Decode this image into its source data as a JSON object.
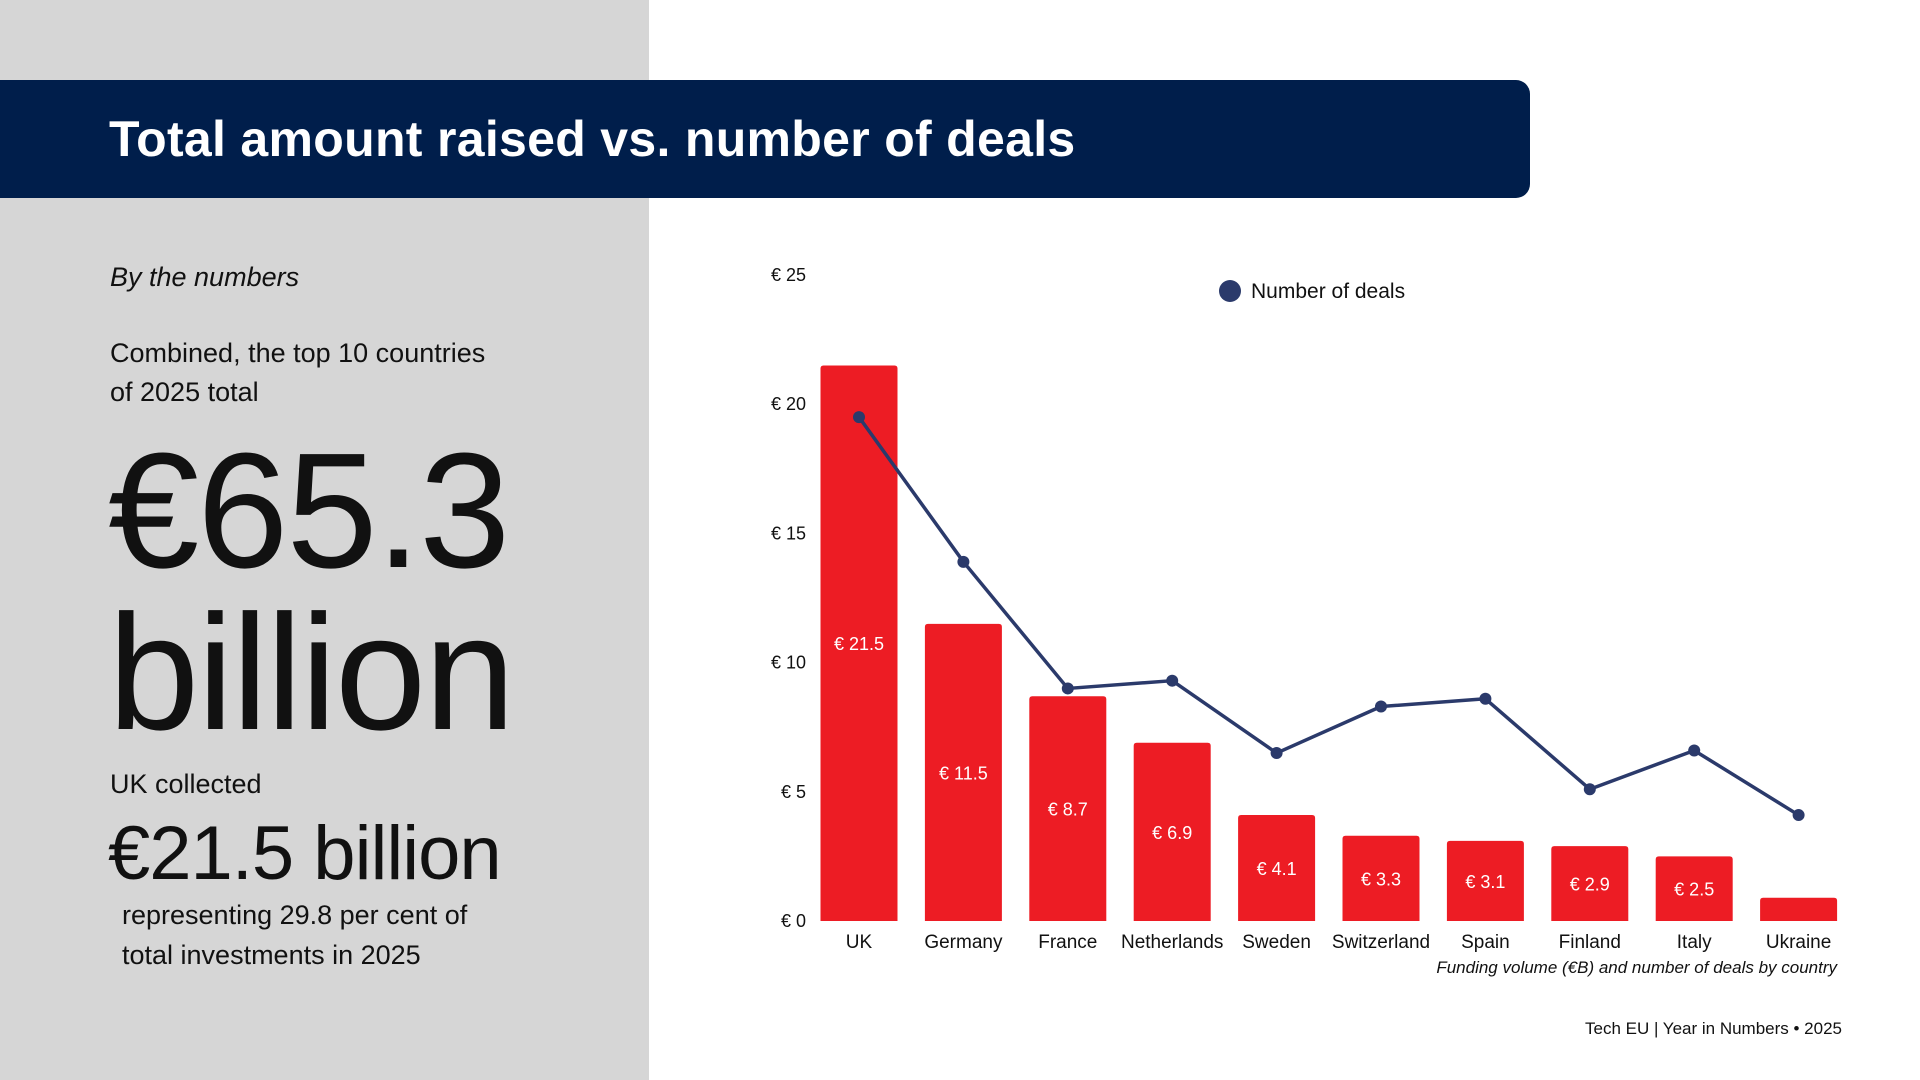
{
  "header": {
    "title": "Total amount raised vs. number of deals"
  },
  "left": {
    "subtitle": "By the numbers",
    "combined_line1": "Combined, the top 10 countries",
    "combined_line2": "of 2025 total",
    "total_line1": "€65.3",
    "total_line2": "billion",
    "uk_label": "UK collected",
    "uk_value": "€21.5 billion",
    "share_line1": "representing 29.8 per cent of",
    "share_line2": "total investments in 2025"
  },
  "chart_data": {
    "type": "bar",
    "categories": [
      "UK",
      "Germany",
      "France",
      "Netherlands",
      "Sweden",
      "Switzerland",
      "Spain",
      "Finland",
      "Italy",
      "Ukraine"
    ],
    "series": [
      {
        "type": "bar",
        "values": [
          21.5,
          11.5,
          8.7,
          6.9,
          4.1,
          3.3,
          3.1,
          2.9,
          2.5,
          0.9
        ],
        "labels": [
          "€ 21.5",
          "€ 11.5",
          "€ 8.7",
          "€ 6.9",
          "€ 4.1",
          "€ 3.3",
          "€ 3.1",
          "€ 2.9",
          "€ 2.5",
          ""
        ],
        "color": "#ed1c24"
      },
      {
        "type": "line",
        "name": "Number of deals",
        "values": [
          19.5,
          13.9,
          9.0,
          9.3,
          6.5,
          8.3,
          8.6,
          5.1,
          6.6,
          4.1
        ],
        "color": "#2b3a6b"
      }
    ],
    "yticks": [
      "€ 0",
      "€ 5",
      "€ 10",
      "€ 15",
      "€ 20",
      "€ 25"
    ],
    "ylim": [
      0,
      25
    ],
    "grid": false,
    "legend": "top",
    "caption": "Funding volume (€B) and number of deals by country"
  },
  "footer": {
    "text": "Tech EU | Year in Numbers • 2025"
  },
  "colors": {
    "navy": "#001e4b",
    "red": "#ed1c24",
    "line": "#2b3a6b",
    "panel": "#d6d6d6"
  }
}
